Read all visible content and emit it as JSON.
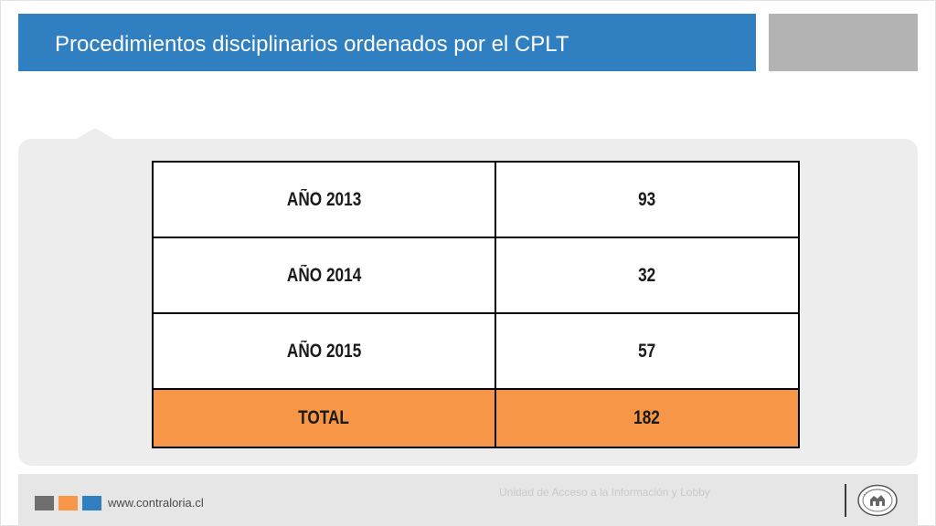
{
  "slide": {
    "title": "Procedimientos disciplinarios ordenados por el CPLT"
  },
  "table": {
    "rows": [
      {
        "label": "AÑO 2013",
        "value": "93"
      },
      {
        "label": "AÑO 2014",
        "value": "32"
      },
      {
        "label": "AÑO 2015",
        "value": "57"
      }
    ],
    "total": {
      "label": "TOTAL",
      "value": "182"
    }
  },
  "footer": {
    "website": "www.contraloria.cl",
    "unit": "Unidad de Acceso a la Información y Lobby",
    "seal_icon": "contraloria-seal-icon"
  },
  "colors": {
    "title_bar": "#2f7fc1",
    "total_row": "#f79646",
    "corner_box": "#b3b3b3"
  }
}
